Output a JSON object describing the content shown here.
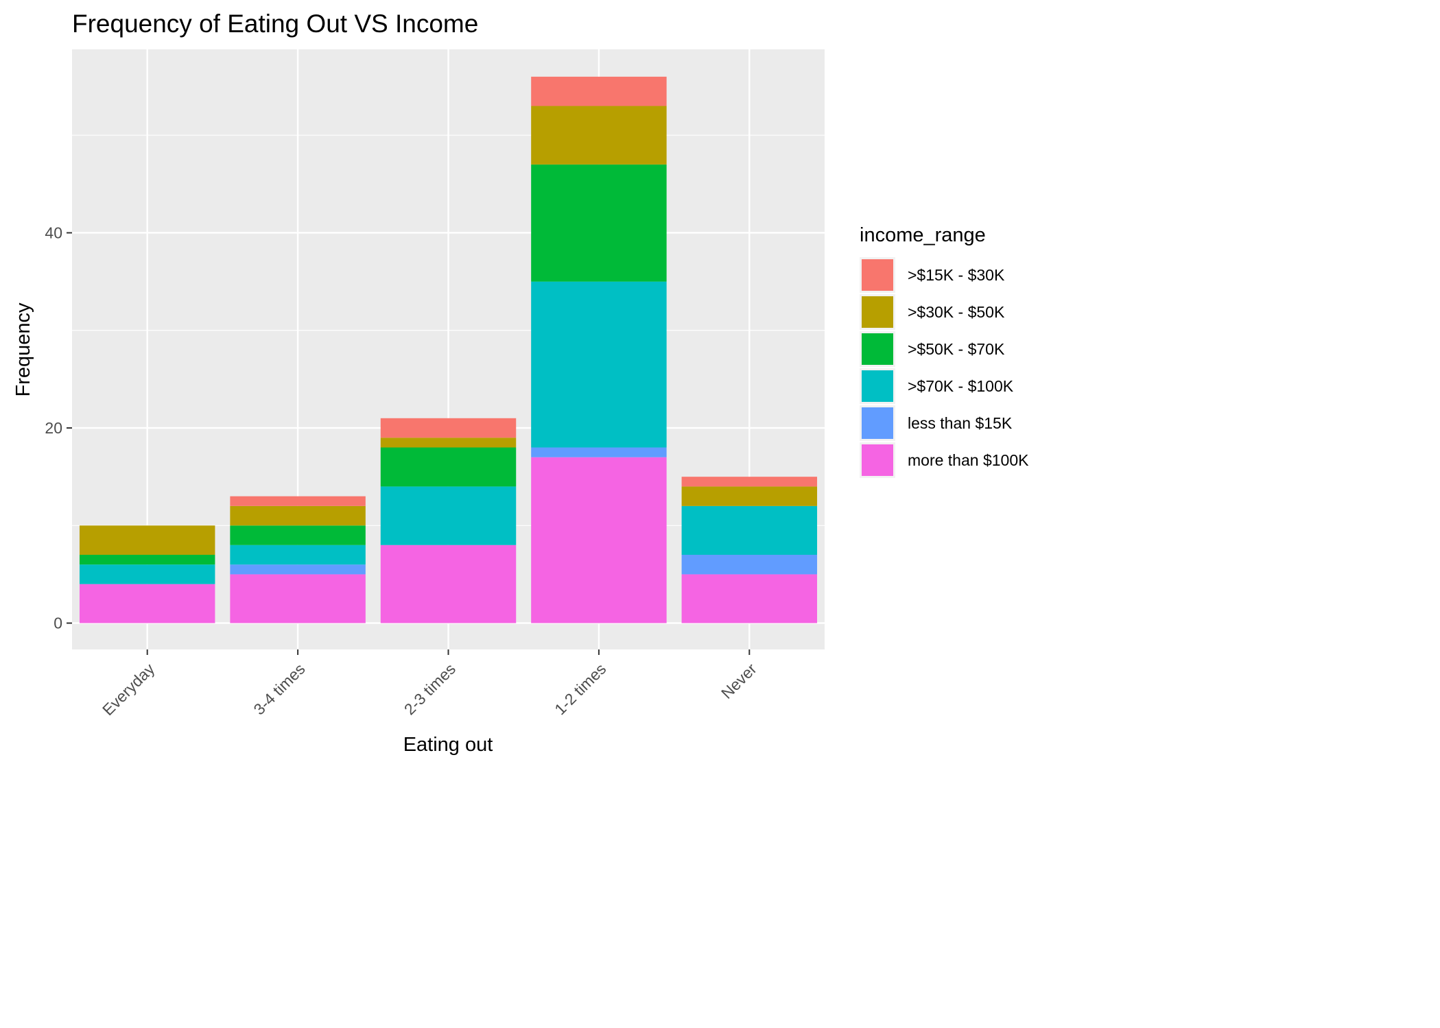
{
  "chart_data": {
    "type": "bar",
    "stacked": true,
    "title": "Frequency of Eating Out VS Income",
    "xlabel": "Eating out",
    "ylabel": "Frequency",
    "categories": [
      "Everyday",
      "3-4 times",
      "2-3 times",
      "1-2 times",
      "Never"
    ],
    "y_ticks": [
      0,
      20,
      40
    ],
    "y_tick_labels": [
      "0",
      "20",
      "40"
    ],
    "ylim": [
      -2.7,
      58.8
    ],
    "grid": true,
    "legend": {
      "title": "income_range",
      "position": "right"
    },
    "series": [
      {
        "name": "more than $100K",
        "color": "#F564E3",
        "values": [
          4,
          5,
          8,
          17,
          5
        ]
      },
      {
        "name": "less than $15K",
        "color": "#619CFF",
        "values": [
          0,
          1,
          0,
          1,
          2
        ]
      },
      {
        "name": ">$70K - $100K",
        "color": "#00BFC4",
        "values": [
          2,
          2,
          6,
          17,
          5
        ]
      },
      {
        "name": ">$50K - $70K",
        "color": "#00BA38",
        "values": [
          1,
          2,
          4,
          12,
          0
        ]
      },
      {
        "name": ">$30K - $50K",
        "color": "#B79F00",
        "values": [
          3,
          2,
          1,
          6,
          2
        ]
      },
      {
        "name": ">$15K - $30K",
        "color": "#F8766D",
        "values": [
          0,
          1,
          2,
          3,
          1
        ]
      }
    ],
    "legend_order": [
      ">$15K - $30K",
      ">$30K - $50K",
      ">$50K - $70K",
      ">$70K - $100K",
      "less than $15K",
      "more than $100K"
    ]
  }
}
